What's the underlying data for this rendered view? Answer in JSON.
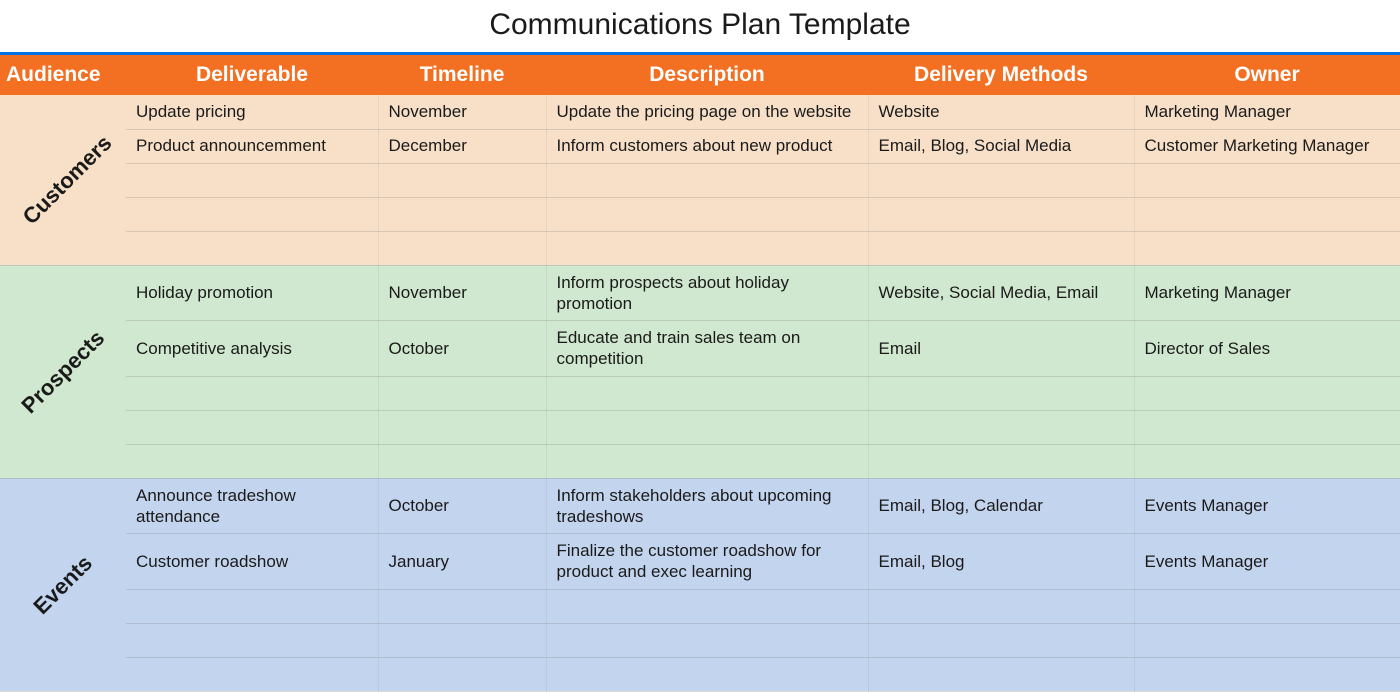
{
  "title": "Communications Plan Template",
  "colors": {
    "header_bg": "#f36f21",
    "header_text": "#ffffff",
    "top_border": "#0073e6",
    "section_customers_bg": "#f8e0c8",
    "section_prospects_bg": "#d0e8cf",
    "section_events_bg": "#c3d4ee",
    "text": "#1a1a1a",
    "row_border": "rgba(120,120,120,0.25)"
  },
  "typography": {
    "title_fontsize": 30,
    "header_fontsize": 21,
    "cell_fontsize": 17,
    "audience_fontsize": 22,
    "audience_rotation_deg": -45
  },
  "columns": [
    {
      "key": "audience",
      "label": "Audience",
      "width_pct": 9
    },
    {
      "key": "deliverable",
      "label": "Deliverable",
      "width_pct": 18
    },
    {
      "key": "timeline",
      "label": "Timeline",
      "width_pct": 12
    },
    {
      "key": "description",
      "label": "Description",
      "width_pct": 23
    },
    {
      "key": "delivery",
      "label": "Delivery Methods",
      "width_pct": 19
    },
    {
      "key": "owner",
      "label": "Owner",
      "width_pct": 19
    }
  ],
  "sections": [
    {
      "audience": "Customers",
      "bg_color": "#f8e0c8",
      "row_count": 5,
      "rows": [
        {
          "deliverable": "Update pricing",
          "timeline": "November",
          "description": "Update the pricing page on the website",
          "delivery": "Website",
          "owner": "Marketing Manager"
        },
        {
          "deliverable": "Product announcemment",
          "timeline": "December",
          "description": "Inform customers about new product",
          "delivery": "Email, Blog, Social Media",
          "owner": "Customer Marketing Manager"
        },
        {
          "deliverable": "",
          "timeline": "",
          "description": "",
          "delivery": "",
          "owner": ""
        },
        {
          "deliverable": "",
          "timeline": "",
          "description": "",
          "delivery": "",
          "owner": ""
        },
        {
          "deliverable": "",
          "timeline": "",
          "description": "",
          "delivery": "",
          "owner": ""
        }
      ]
    },
    {
      "audience": "Prospects",
      "bg_color": "#d0e8cf",
      "row_count": 5,
      "rows": [
        {
          "deliverable": "Holiday promotion",
          "timeline": "November",
          "description": "Inform prospects about holiday promotion",
          "delivery": "Website, Social Media, Email",
          "owner": "Marketing Manager"
        },
        {
          "deliverable": "Competitive analysis",
          "timeline": "October",
          "description": "Educate and train sales team on competition",
          "delivery": "Email",
          "owner": "Director of Sales"
        },
        {
          "deliverable": "",
          "timeline": "",
          "description": "",
          "delivery": "",
          "owner": ""
        },
        {
          "deliverable": "",
          "timeline": "",
          "description": "",
          "delivery": "",
          "owner": ""
        },
        {
          "deliverable": "",
          "timeline": "",
          "description": "",
          "delivery": "",
          "owner": ""
        }
      ]
    },
    {
      "audience": "Events",
      "bg_color": "#c3d4ee",
      "row_count": 5,
      "rows": [
        {
          "deliverable": "Announce tradeshow attendance",
          "timeline": "October",
          "description": "Inform stakeholders about upcoming tradeshows",
          "delivery": "Email, Blog, Calendar",
          "owner": "Events Manager"
        },
        {
          "deliverable": "Customer roadshow",
          "timeline": "January",
          "description": "Finalize the customer roadshow for product and exec learning",
          "delivery": "Email, Blog",
          "owner": "Events Manager"
        },
        {
          "deliverable": "",
          "timeline": "",
          "description": "",
          "delivery": "",
          "owner": ""
        },
        {
          "deliverable": "",
          "timeline": "",
          "description": "",
          "delivery": "",
          "owner": ""
        },
        {
          "deliverable": "",
          "timeline": "",
          "description": "",
          "delivery": "",
          "owner": ""
        }
      ]
    }
  ]
}
